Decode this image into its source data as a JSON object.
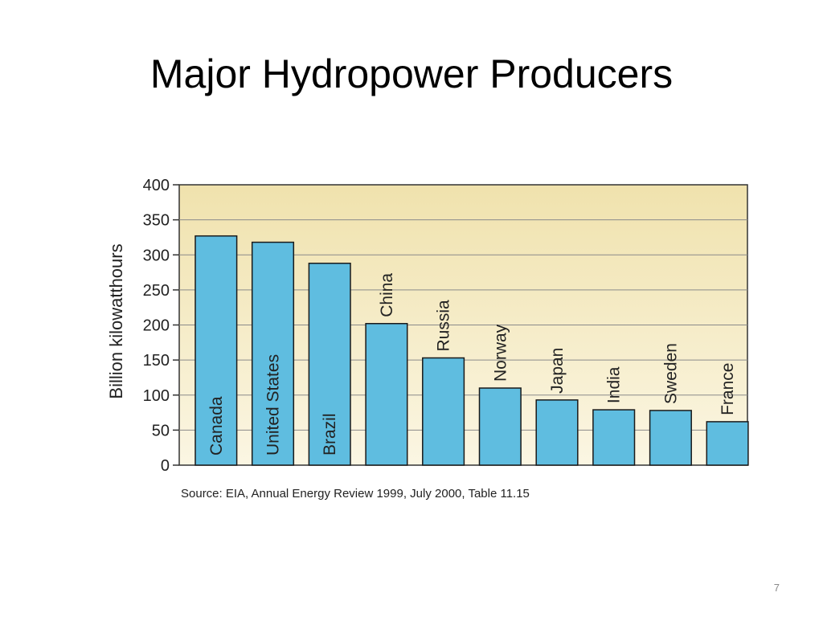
{
  "slide": {
    "title": "Major Hydropower Producers",
    "page_number": "7"
  },
  "colors": {
    "plot_background_top": "#f0e2ad",
    "plot_background_bottom": "#fbf6e3",
    "bar_fill": "#5fbde0",
    "bar_stroke": "#1a1a1a",
    "text": "#222222"
  },
  "chart_data": {
    "type": "bar",
    "categories": [
      "Canada",
      "United States",
      "Brazil",
      "China",
      "Russia",
      "Norway",
      "Japan",
      "India",
      "Sweden",
      "France"
    ],
    "values": [
      327,
      318,
      288,
      202,
      153,
      110,
      93,
      79,
      78,
      62
    ],
    "xlabel": "",
    "ylabel": "Billion kilowatthours",
    "ylim": [
      0,
      400
    ],
    "yticks": [
      "0",
      "50",
      "100",
      "150",
      "200",
      "250",
      "300",
      "350",
      "400"
    ],
    "grid": true,
    "source": "Source:  EIA, Annual Energy Review 1999, July 2000, Table 11.15"
  }
}
